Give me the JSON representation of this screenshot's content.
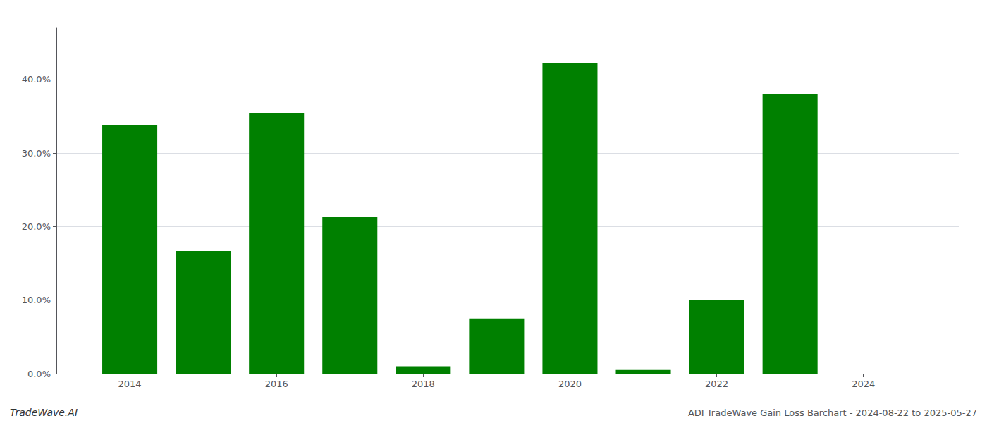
{
  "chart_data": {
    "type": "bar",
    "x": [
      2014,
      2015,
      2016,
      2017,
      2018,
      2019,
      2020,
      2021,
      2022,
      2023,
      2024
    ],
    "values": [
      0.338,
      0.167,
      0.355,
      0.213,
      0.01,
      0.075,
      0.422,
      0.005,
      0.1,
      0.38,
      0.0
    ],
    "color": "#008000",
    "xlim": [
      2013.0,
      2025.3
    ],
    "xticks": [
      2014,
      2016,
      2018,
      2020,
      2022,
      2024
    ],
    "ylim": [
      0,
      0.47
    ],
    "yticks": [
      {
        "value": 0.0,
        "label": "0.0%"
      },
      {
        "value": 0.1,
        "label": "10.0%"
      },
      {
        "value": 0.2,
        "label": "20.0%"
      },
      {
        "value": 0.3,
        "label": "30.0%"
      },
      {
        "value": 0.4,
        "label": "40.0%"
      }
    ],
    "grid": true,
    "annotations": [
      "TradeWave.AI",
      "ADI TradeWave Gain Loss Barchart - 2024-08-22 to 2025-05-27"
    ]
  }
}
